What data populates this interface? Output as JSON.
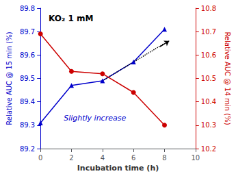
{
  "chart_data": {
    "type": "line",
    "title": "KO₂ 1 mM",
    "xlabel": "Incubation time (h)",
    "ylabel": "Relative AUC @ 15 min (%)",
    "y2label": "Relative AUC @ 14 min (%)",
    "xlim": [
      0,
      10
    ],
    "xticks": [
      0,
      2,
      4,
      6,
      8,
      10
    ],
    "ylim": [
      89.2,
      89.8
    ],
    "yticks": [
      89.2,
      89.3,
      89.4,
      89.5,
      89.6,
      89.7,
      89.8
    ],
    "y2lim": [
      10.2,
      10.8
    ],
    "y2ticks": [
      10.2,
      10.3,
      10.4,
      10.5,
      10.6,
      10.7,
      10.8
    ],
    "grid": false,
    "series": [
      {
        "x": [
          0,
          2,
          4,
          6,
          8
        ],
        "values": [
          89.31,
          89.47,
          89.49,
          89.57,
          89.71
        ],
        "color": "#0000cc",
        "marker": "triangle",
        "line_style": "solid",
        "axis": "y"
      },
      {
        "x": [
          4,
          5,
          6,
          7,
          8
        ],
        "values": [
          89.49,
          89.53,
          89.57,
          89.61,
          89.65
        ],
        "color": "#000000",
        "marker": "none",
        "line_style": "dotted",
        "axis": "y"
      },
      {
        "x": [
          0,
          2,
          4,
          6,
          8
        ],
        "values": [
          10.69,
          10.53,
          10.52,
          10.44,
          10.3
        ],
        "color": "#cc0000",
        "marker": "circle",
        "line_style": "solid",
        "axis": "y2"
      }
    ],
    "annotations": [
      {
        "text": "Slightly increase",
        "x": 1.5,
        "y": 89.33,
        "color": "#0000cc"
      }
    ],
    "arrows": [
      {
        "x": 7.7,
        "y": 89.635,
        "x_end": 8.3,
        "y_end": 89.66,
        "color": "#000000"
      }
    ]
  }
}
